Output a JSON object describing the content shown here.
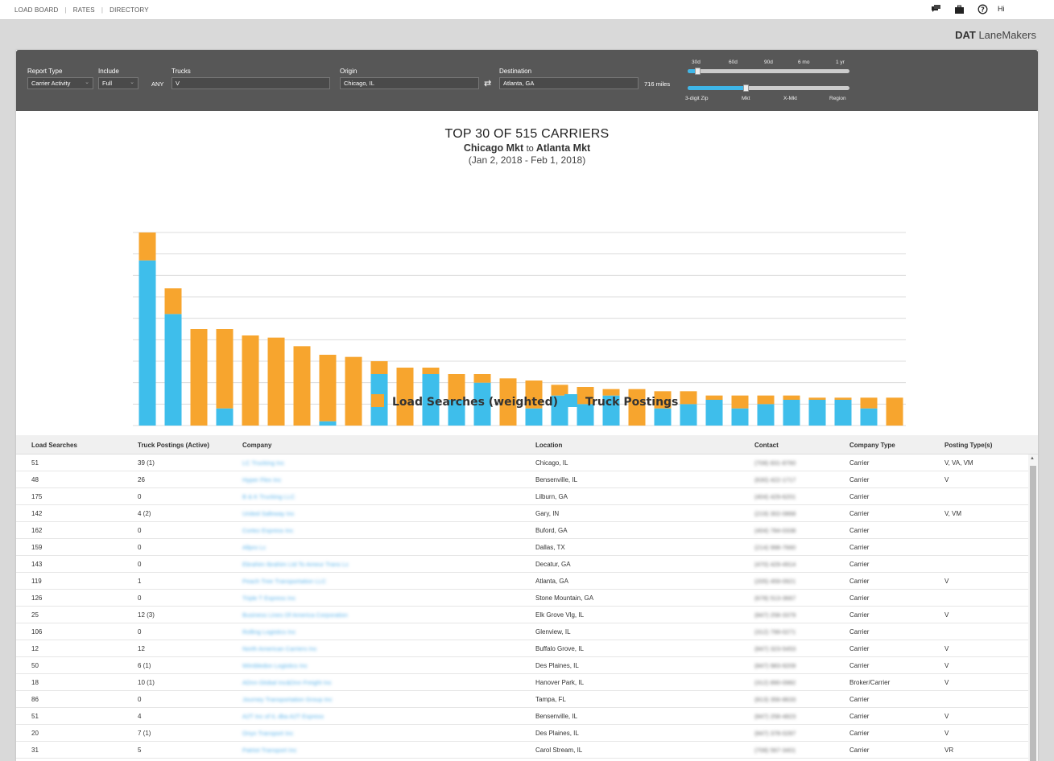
{
  "nav": {
    "links": [
      "LOAD BOARD",
      "RATES",
      "DIRECTORY"
    ],
    "greeting": "Hi",
    "icons": [
      "chat-icon",
      "briefcase-icon",
      "help-icon"
    ]
  },
  "brand": {
    "strong": "DAT",
    "rest": "LaneMakers"
  },
  "filters": {
    "report_type_label": "Report Type",
    "report_type_value": "Carrier Activity",
    "include_label": "Include",
    "include_value": "Full",
    "trucks_label": "Trucks",
    "trucks_prefix": "ANY",
    "trucks_value": "V",
    "origin_label": "Origin",
    "origin_value": "Chicago, IL",
    "destination_label": "Destination",
    "destination_value": "Atlanta, GA",
    "distance": "716 miles",
    "time_ticks": [
      "30d",
      "60d",
      "90d",
      "6 mo",
      "1 yr"
    ],
    "time_selected": "30d",
    "geo_ticks": [
      "3-digit Zip",
      "Mkt",
      "X-Mkt",
      "Region"
    ],
    "geo_selected": "Mkt"
  },
  "chart_data": {
    "type": "bar",
    "stacked": true,
    "title": "TOP 30 OF 515 CARRIERS",
    "subtitle_a": "Chicago Mkt",
    "subtitle_to": "to",
    "subtitle_b": "Atlanta Mkt",
    "date_range": "(Jan 2, 2018 - Feb 1, 2018)",
    "ylim": [
      0,
      90
    ],
    "grid": true,
    "legend_position": "bottom",
    "series": [
      {
        "name": "Truck Postings",
        "color": "#3ebeeb",
        "values": [
          77,
          52,
          0,
          8,
          0,
          0,
          0,
          2,
          0,
          24,
          0,
          24,
          12,
          20,
          0,
          8,
          14,
          10,
          14,
          0,
          8,
          10,
          12,
          8,
          10,
          12,
          12,
          12,
          8,
          0
        ]
      },
      {
        "name": "Load Searches (weighted)",
        "color": "#f7a52e",
        "values": [
          13,
          12,
          45,
          37,
          42,
          41,
          37,
          31,
          32,
          6,
          27,
          3,
          12,
          4,
          22,
          13,
          5,
          8,
          3,
          17,
          8,
          6,
          2,
          6,
          4,
          2,
          1,
          1,
          5,
          13
        ]
      }
    ]
  },
  "table": {
    "headers": [
      "Load Searches",
      "Truck Postings (Active)",
      "Company",
      "Location",
      "Contact",
      "Company Type",
      "Posting Type(s)"
    ],
    "rows": [
      [
        "51",
        "39 (1)",
        "LC Trucking Inc",
        "Chicago, IL",
        "(708) 831-8760",
        "Carrier",
        "V, VA, VM"
      ],
      [
        "48",
        "26",
        "Hyper Flex Inc",
        "Bensenville, IL",
        "(630) 422-1717",
        "Carrier",
        "V"
      ],
      [
        "175",
        "0",
        "B & K Trucking LLC",
        "Lilburn, GA",
        "(404) 429-6201",
        "Carrier",
        ""
      ],
      [
        "142",
        "4 (2)",
        "United Safeway Inc",
        "Gary, IN",
        "(219) 302-0868",
        "Carrier",
        "V, VM"
      ],
      [
        "162",
        "0",
        "Cortez Express Inc",
        "Buford, GA",
        "(404) 784-0338",
        "Carrier",
        ""
      ],
      [
        "159",
        "0",
        "Allpro Lc",
        "Dallas, TX",
        "(214) 998-7660",
        "Carrier",
        ""
      ],
      [
        "143",
        "0",
        "Ebrahim Ibrahim Ltd To Ameur Trans Lc",
        "Decatur, GA",
        "(470) 429-4914",
        "Carrier",
        ""
      ],
      [
        "119",
        "1",
        "Peach Tree Transportation LLC",
        "Atlanta, GA",
        "(205) 459-0921",
        "Carrier",
        "V"
      ],
      [
        "126",
        "0",
        "Triple T Express Inc",
        "Stone Mountain, GA",
        "(678) 513-3667",
        "Carrier",
        ""
      ],
      [
        "25",
        "12 (3)",
        "Business Lines Of America Corporation",
        "Elk Grove Vlg, IL",
        "(847) 258-3379",
        "Carrier",
        "V"
      ],
      [
        "106",
        "0",
        "Rolling Logistics Inc",
        "Glenview, IL",
        "(312) 799-0271",
        "Carrier",
        ""
      ],
      [
        "12",
        "12",
        "North American Carriers Inc",
        "Buffalo Grove, IL",
        "(847) 323-5453",
        "Carrier",
        "V"
      ],
      [
        "50",
        "6 (1)",
        "Wimbledon Logistics Inc",
        "Des Plaines, IL",
        "(847) 983-9209",
        "Carrier",
        "V"
      ],
      [
        "18",
        "10 (1)",
        "ADnn Global Inc&Dnn Freight Inc",
        "Hanover Park, IL",
        "(312) 890-0982",
        "Broker/Carrier",
        "V"
      ],
      [
        "86",
        "0",
        "Journey Transportation Group Inc",
        "Tampa, FL",
        "(813) 356-8633",
        "Carrier",
        ""
      ],
      [
        "51",
        "4",
        "A2T Inc of IL dba A2T Express",
        "Bensenville, IL",
        "(847) 258-4823",
        "Carrier",
        "V"
      ],
      [
        "20",
        "7 (1)",
        "Onyx Transport Inc",
        "Des Plaines, IL",
        "(847) 378-0287",
        "Carrier",
        "V"
      ],
      [
        "31",
        "5",
        "Patriot Transport Inc",
        "Carol Stream, IL",
        "(708) 567-3401",
        "Carrier",
        "VR"
      ]
    ]
  }
}
